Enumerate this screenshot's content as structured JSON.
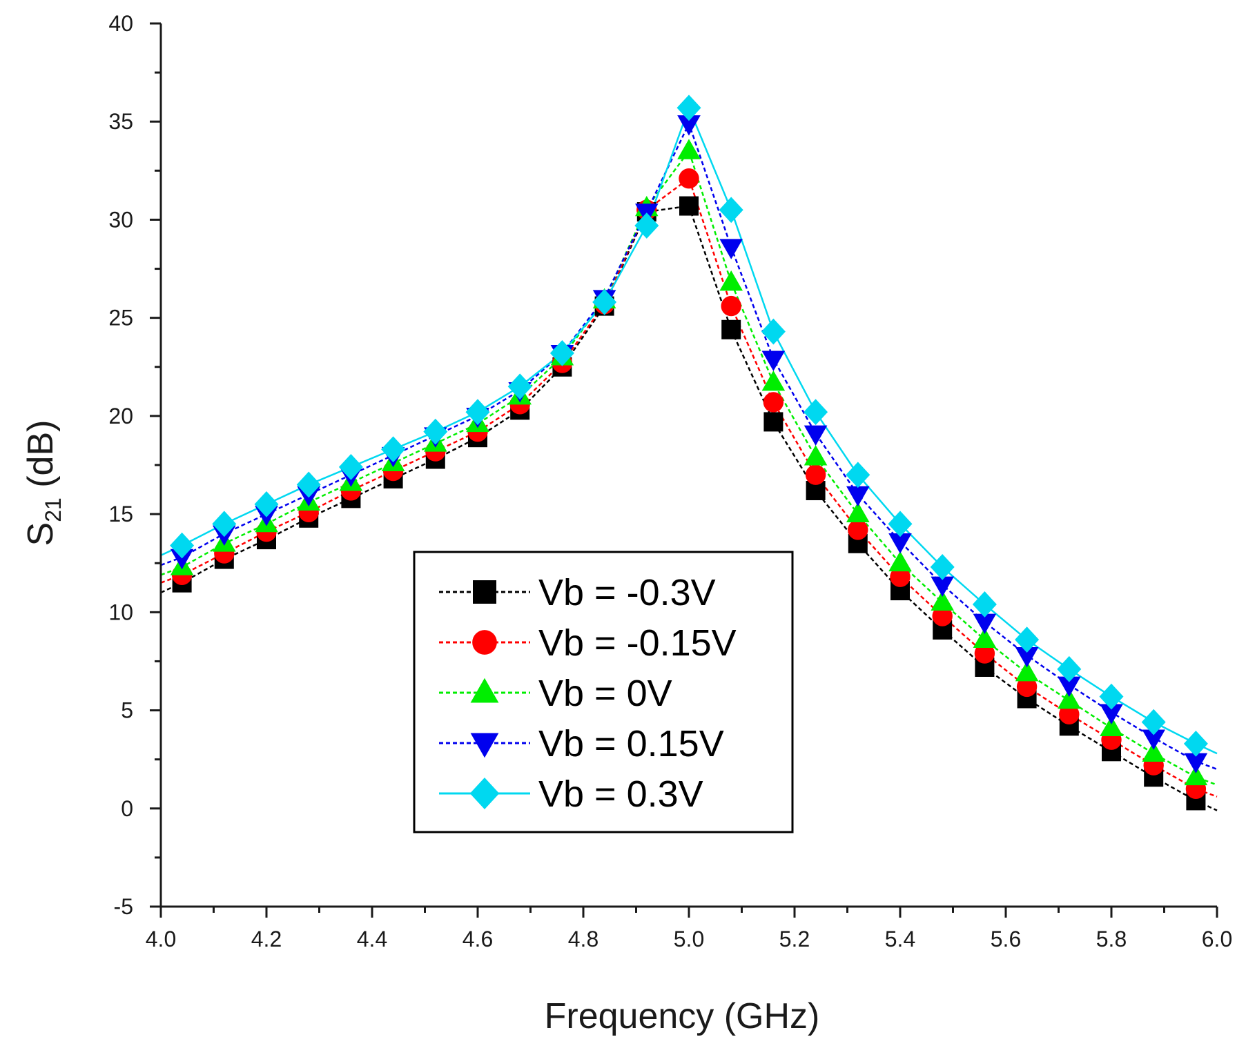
{
  "chart_data": {
    "type": "line",
    "title": "",
    "xlabel": "Frequency (GHz)",
    "ylabel_main": "S",
    "ylabel_sub": "21",
    "ylabel_rest": " (dB)",
    "xlim": [
      4.0,
      6.0
    ],
    "ylim": [
      -5,
      40
    ],
    "x_ticks": [
      4.0,
      4.2,
      4.4,
      4.6,
      4.8,
      5.0,
      5.2,
      5.4,
      5.6,
      5.8,
      6.0
    ],
    "x_tick_labels": [
      "4.0",
      "4.2",
      "4.4",
      "4.6",
      "4.8",
      "5.0",
      "5.2",
      "5.4",
      "5.6",
      "5.8",
      "6.0"
    ],
    "y_ticks": [
      -5,
      0,
      5,
      10,
      15,
      20,
      25,
      30,
      35,
      40
    ],
    "y_tick_labels": [
      "-5",
      "0",
      "5",
      "10",
      "15",
      "20",
      "25",
      "30",
      "35",
      "40"
    ],
    "grid": false,
    "legend_position": "center-left",
    "x": [
      4.04,
      4.12,
      4.2,
      4.28,
      4.36,
      4.44,
      4.52,
      4.6,
      4.68,
      4.76,
      4.84,
      4.92,
      5.0,
      5.08,
      5.16,
      5.24,
      5.32,
      5.4,
      5.48,
      5.56,
      5.64,
      5.72,
      5.8,
      5.88,
      5.96
    ],
    "series": [
      {
        "name": "Vb = -0.3V",
        "color": "#000000",
        "marker": "square",
        "line_start": [
          4.0,
          11.0
        ],
        "line_end": [
          6.0,
          -0.1
        ],
        "values": [
          11.5,
          12.7,
          13.7,
          14.8,
          15.8,
          16.8,
          17.8,
          18.9,
          20.3,
          22.5,
          25.6,
          30.4,
          30.7,
          24.4,
          19.7,
          16.2,
          13.5,
          11.1,
          9.1,
          7.2,
          5.6,
          4.2,
          2.9,
          1.6,
          0.4
        ]
      },
      {
        "name": "Vb = -0.15V",
        "color": "#ff0000",
        "marker": "circle",
        "line_start": [
          4.0,
          11.5
        ],
        "line_end": [
          6.0,
          0.6
        ],
        "values": [
          11.9,
          13.0,
          14.1,
          15.1,
          16.2,
          17.2,
          18.2,
          19.2,
          20.6,
          22.7,
          25.7,
          30.5,
          32.1,
          25.6,
          20.7,
          17.0,
          14.2,
          11.8,
          9.8,
          7.9,
          6.2,
          4.8,
          3.5,
          2.2,
          1.0
        ]
      },
      {
        "name": "Vb = 0V",
        "color": "#00ee00",
        "marker": "triangle-up",
        "line_start": [
          4.0,
          11.9
        ],
        "line_end": [
          6.0,
          1.2
        ],
        "values": [
          12.3,
          13.5,
          14.5,
          15.6,
          16.6,
          17.6,
          18.6,
          19.6,
          21.0,
          23.0,
          25.9,
          30.6,
          33.5,
          26.8,
          21.7,
          17.9,
          15.0,
          12.5,
          10.5,
          8.6,
          6.9,
          5.5,
          4.1,
          2.8,
          1.6
        ]
      },
      {
        "name": "Vb = 0.15V",
        "color": "#0000ee",
        "marker": "triangle-down",
        "line_start": [
          4.0,
          12.4
        ],
        "line_end": [
          6.0,
          2.0
        ],
        "values": [
          12.8,
          14.0,
          15.0,
          16.0,
          17.0,
          18.0,
          19.0,
          20.0,
          21.3,
          23.2,
          26.0,
          30.4,
          34.9,
          28.6,
          22.9,
          19.1,
          16.0,
          13.6,
          11.4,
          9.5,
          7.8,
          6.3,
          4.9,
          3.6,
          2.4
        ]
      },
      {
        "name": "Vb = 0.3V",
        "color": "#00d8f0",
        "marker": "diamond",
        "line_start": [
          4.0,
          12.9
        ],
        "line_end": [
          6.0,
          2.8
        ],
        "values": [
          13.4,
          14.5,
          15.5,
          16.5,
          17.4,
          18.3,
          19.2,
          20.2,
          21.5,
          23.2,
          25.8,
          29.7,
          35.7,
          30.5,
          24.3,
          20.2,
          17.0,
          14.5,
          12.3,
          10.4,
          8.6,
          7.1,
          5.7,
          4.4,
          3.3
        ]
      }
    ]
  }
}
